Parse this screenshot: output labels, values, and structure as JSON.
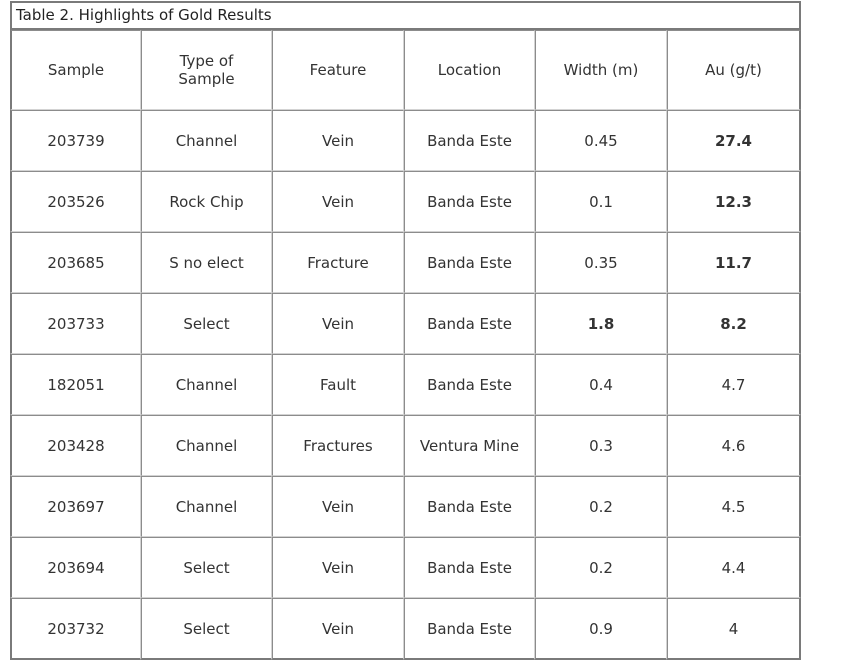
{
  "table": {
    "caption": "Table 2. Highlights of Gold Results",
    "headers": {
      "sample": "Sample",
      "type_line1": "Type of",
      "type_line2": "Sample",
      "feature": "Feature",
      "location": "Location",
      "width": "Width (m)",
      "au": "Au (g/t)"
    },
    "rows": [
      {
        "sample": "203739",
        "type": "Channel",
        "feature": "Vein",
        "location": "Banda Este",
        "width": "0.45",
        "au": "27.4"
      },
      {
        "sample": "203526",
        "type": "Rock Chip",
        "feature": "Vein",
        "location": "Banda Este",
        "width": "0.1",
        "au": "12.3"
      },
      {
        "sample": "203685",
        "type": "S no elect",
        "feature": "Fracture",
        "location": "Banda Este",
        "width": "0.35",
        "au": "11.7"
      },
      {
        "sample": "203733",
        "type": "Select",
        "feature": "Vein",
        "location": "Banda Este",
        "width": "1.8",
        "au": "8.2"
      },
      {
        "sample": "182051",
        "type": "Channel",
        "feature": "Fault",
        "location": "Banda Este",
        "width": "0.4",
        "au": "4.7"
      },
      {
        "sample": "203428",
        "type": "Channel",
        "feature": "Fractures",
        "location": "Ventura Mine",
        "width": "0.3",
        "au": "4.6"
      },
      {
        "sample": "203697",
        "type": "Channel",
        "feature": "Vein",
        "location": "Banda Este",
        "width": "0.2",
        "au": "4.5"
      },
      {
        "sample": "203694",
        "type": "Select",
        "feature": "Vein",
        "location": "Banda Este",
        "width": "0.2",
        "au": "4.4"
      },
      {
        "sample": "203732",
        "type": "Select",
        "feature": "Vein",
        "location": "Banda Este",
        "width": "0.9",
        "au": "4"
      }
    ]
  }
}
